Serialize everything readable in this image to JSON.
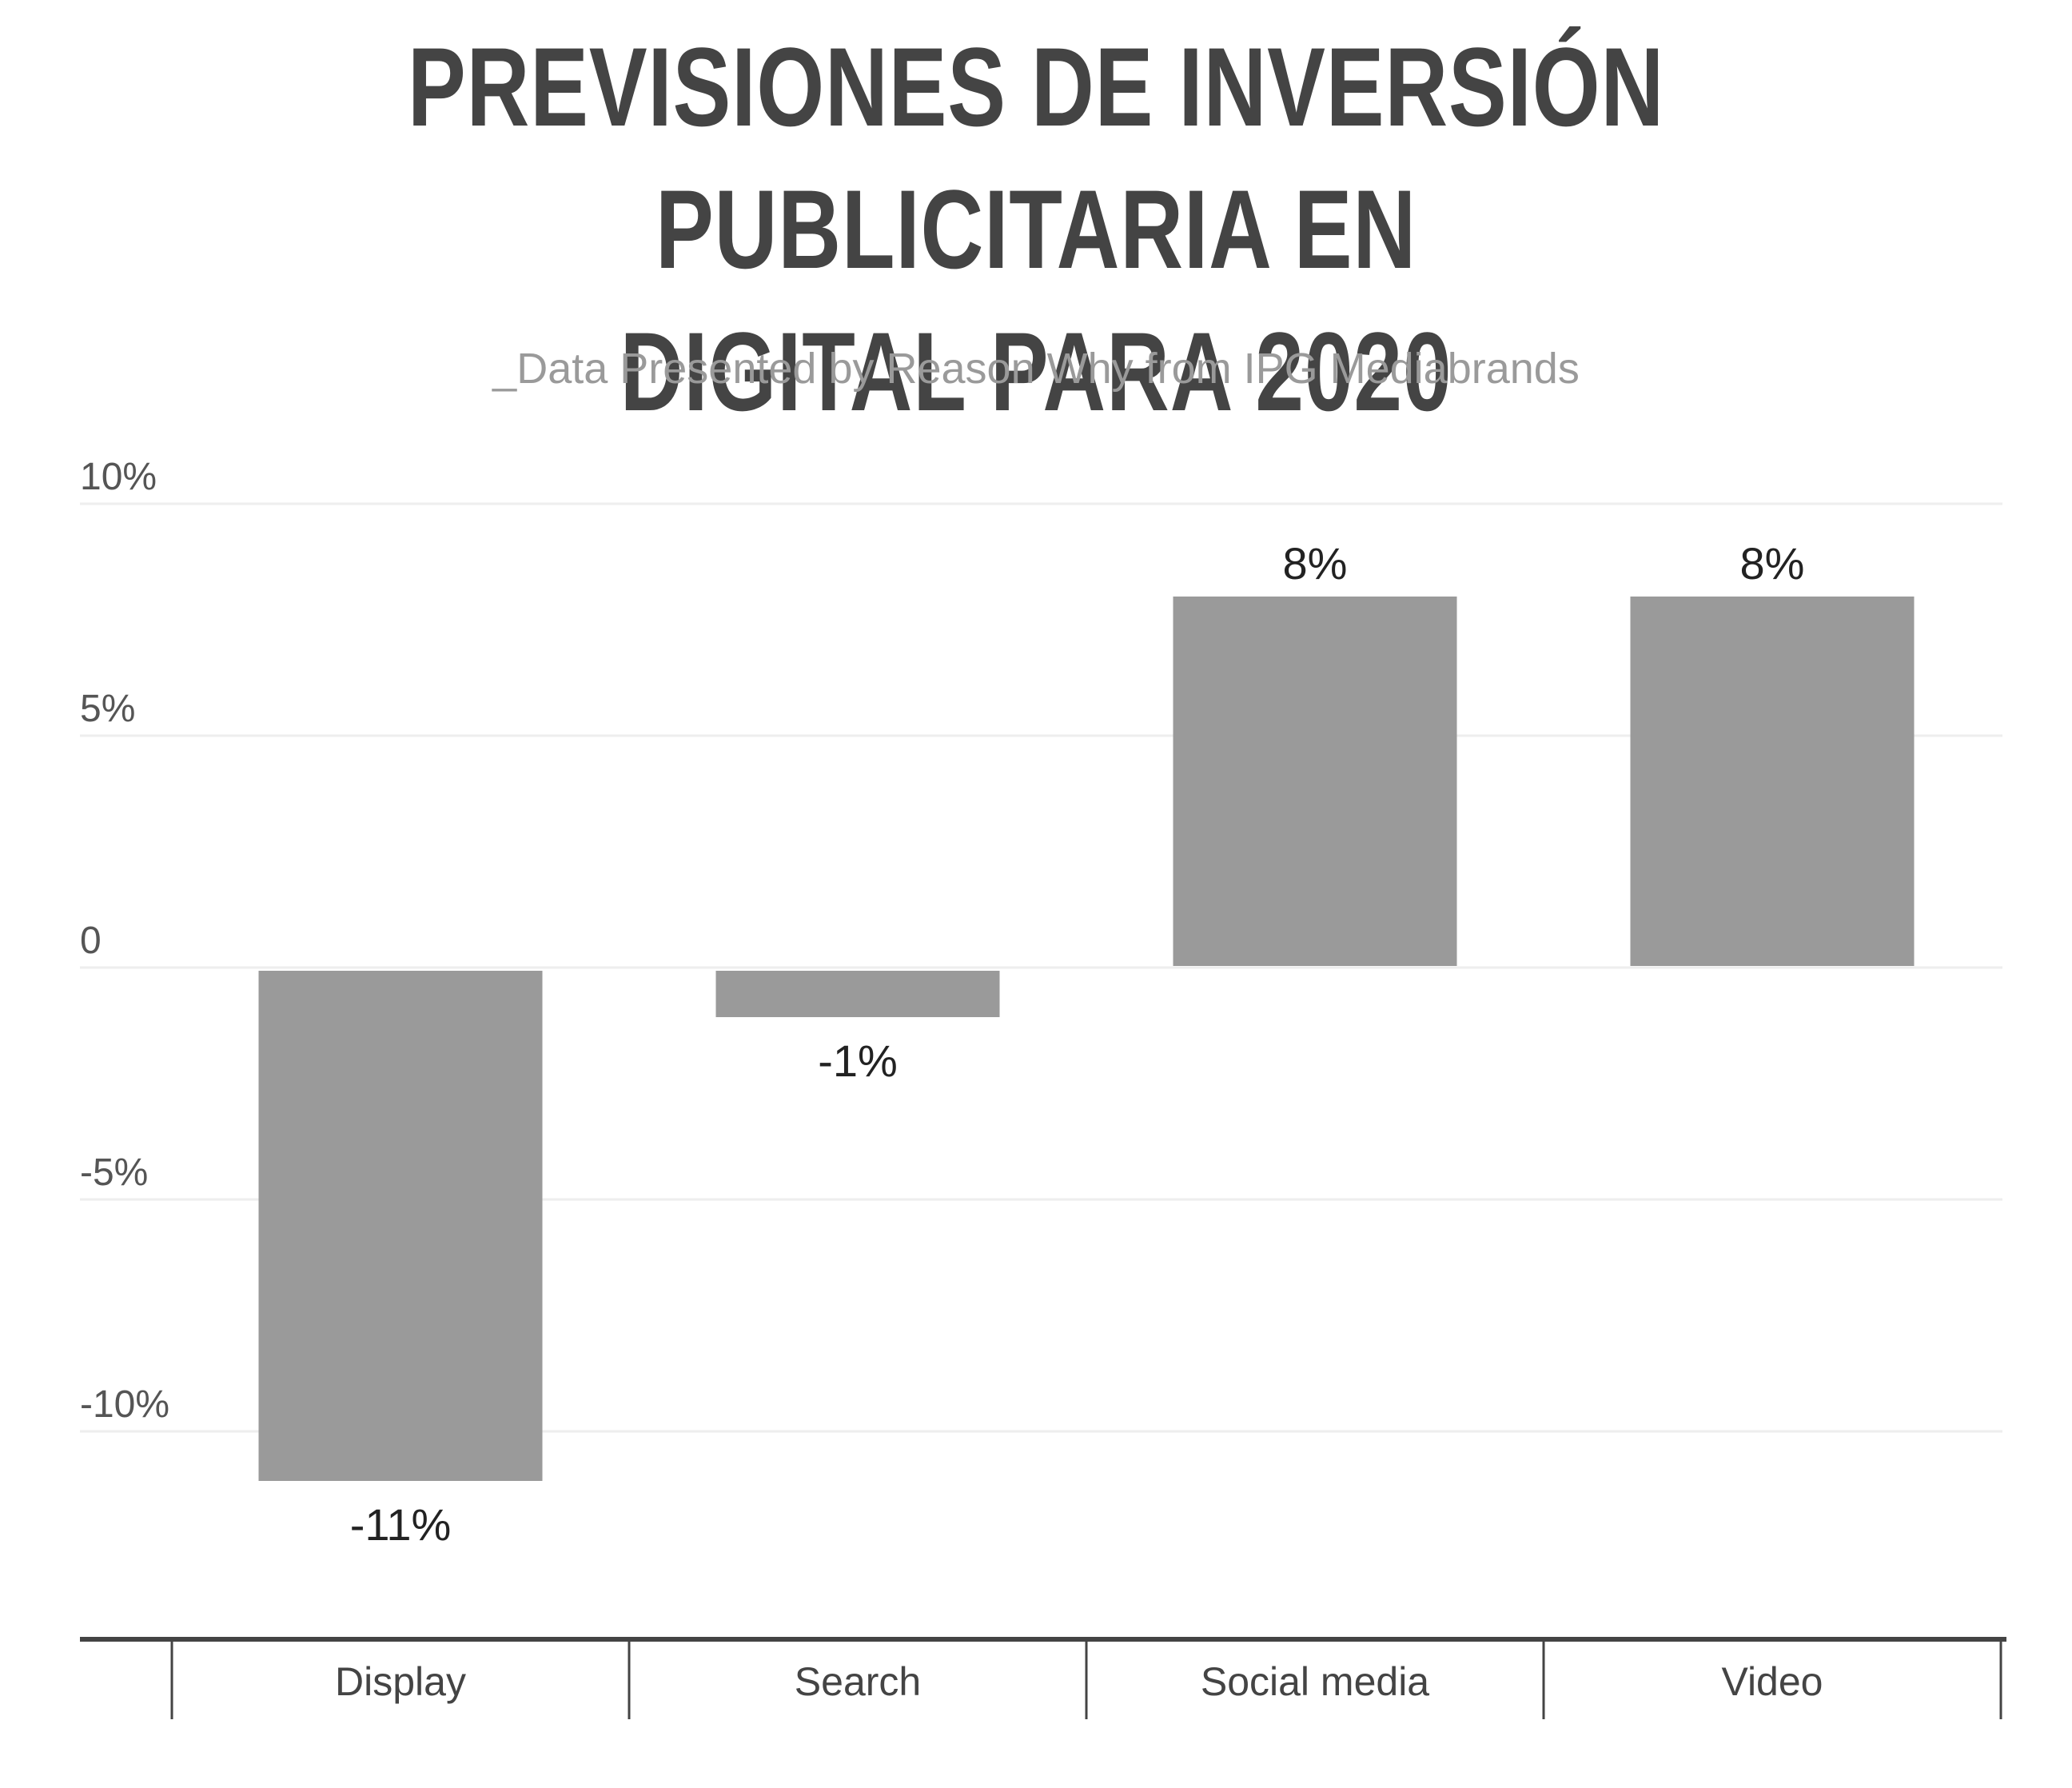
{
  "header": {
    "title_line1": "PREVISIONES DE INVERSIÓN PUBLICITARIA EN",
    "title_line2": "DIGITAL PARA 2020",
    "subtitle": "_Data Presented by Reason Why from IPG Mediabrands"
  },
  "chart_data": {
    "type": "bar",
    "title": "PREVISIONES DE INVERSIÓN PUBLICITARIA EN DIGITAL PARA 2020",
    "subtitle": "_Data Presented by Reason Why from IPG Mediabrands",
    "categories": [
      "Display",
      "Search",
      "Social media",
      "Video"
    ],
    "values": [
      -11,
      -1,
      8,
      8
    ],
    "data_labels": [
      "-11%",
      "-1%",
      "8%",
      "8%"
    ],
    "y_ticks": [
      10,
      5,
      0,
      -5,
      -10
    ],
    "y_tick_labels": [
      "10%",
      "5%",
      "0",
      "-5%",
      "-10%"
    ],
    "ylim": [
      -13.5,
      10
    ],
    "xlabel": "",
    "ylabel": "",
    "grid": true,
    "legend": "none",
    "colors": {
      "bar": "#9a9a9a",
      "grid": "#eeeeee",
      "axis": "#444444",
      "title": "#444444",
      "subtitle": "#9a9a9a"
    }
  }
}
